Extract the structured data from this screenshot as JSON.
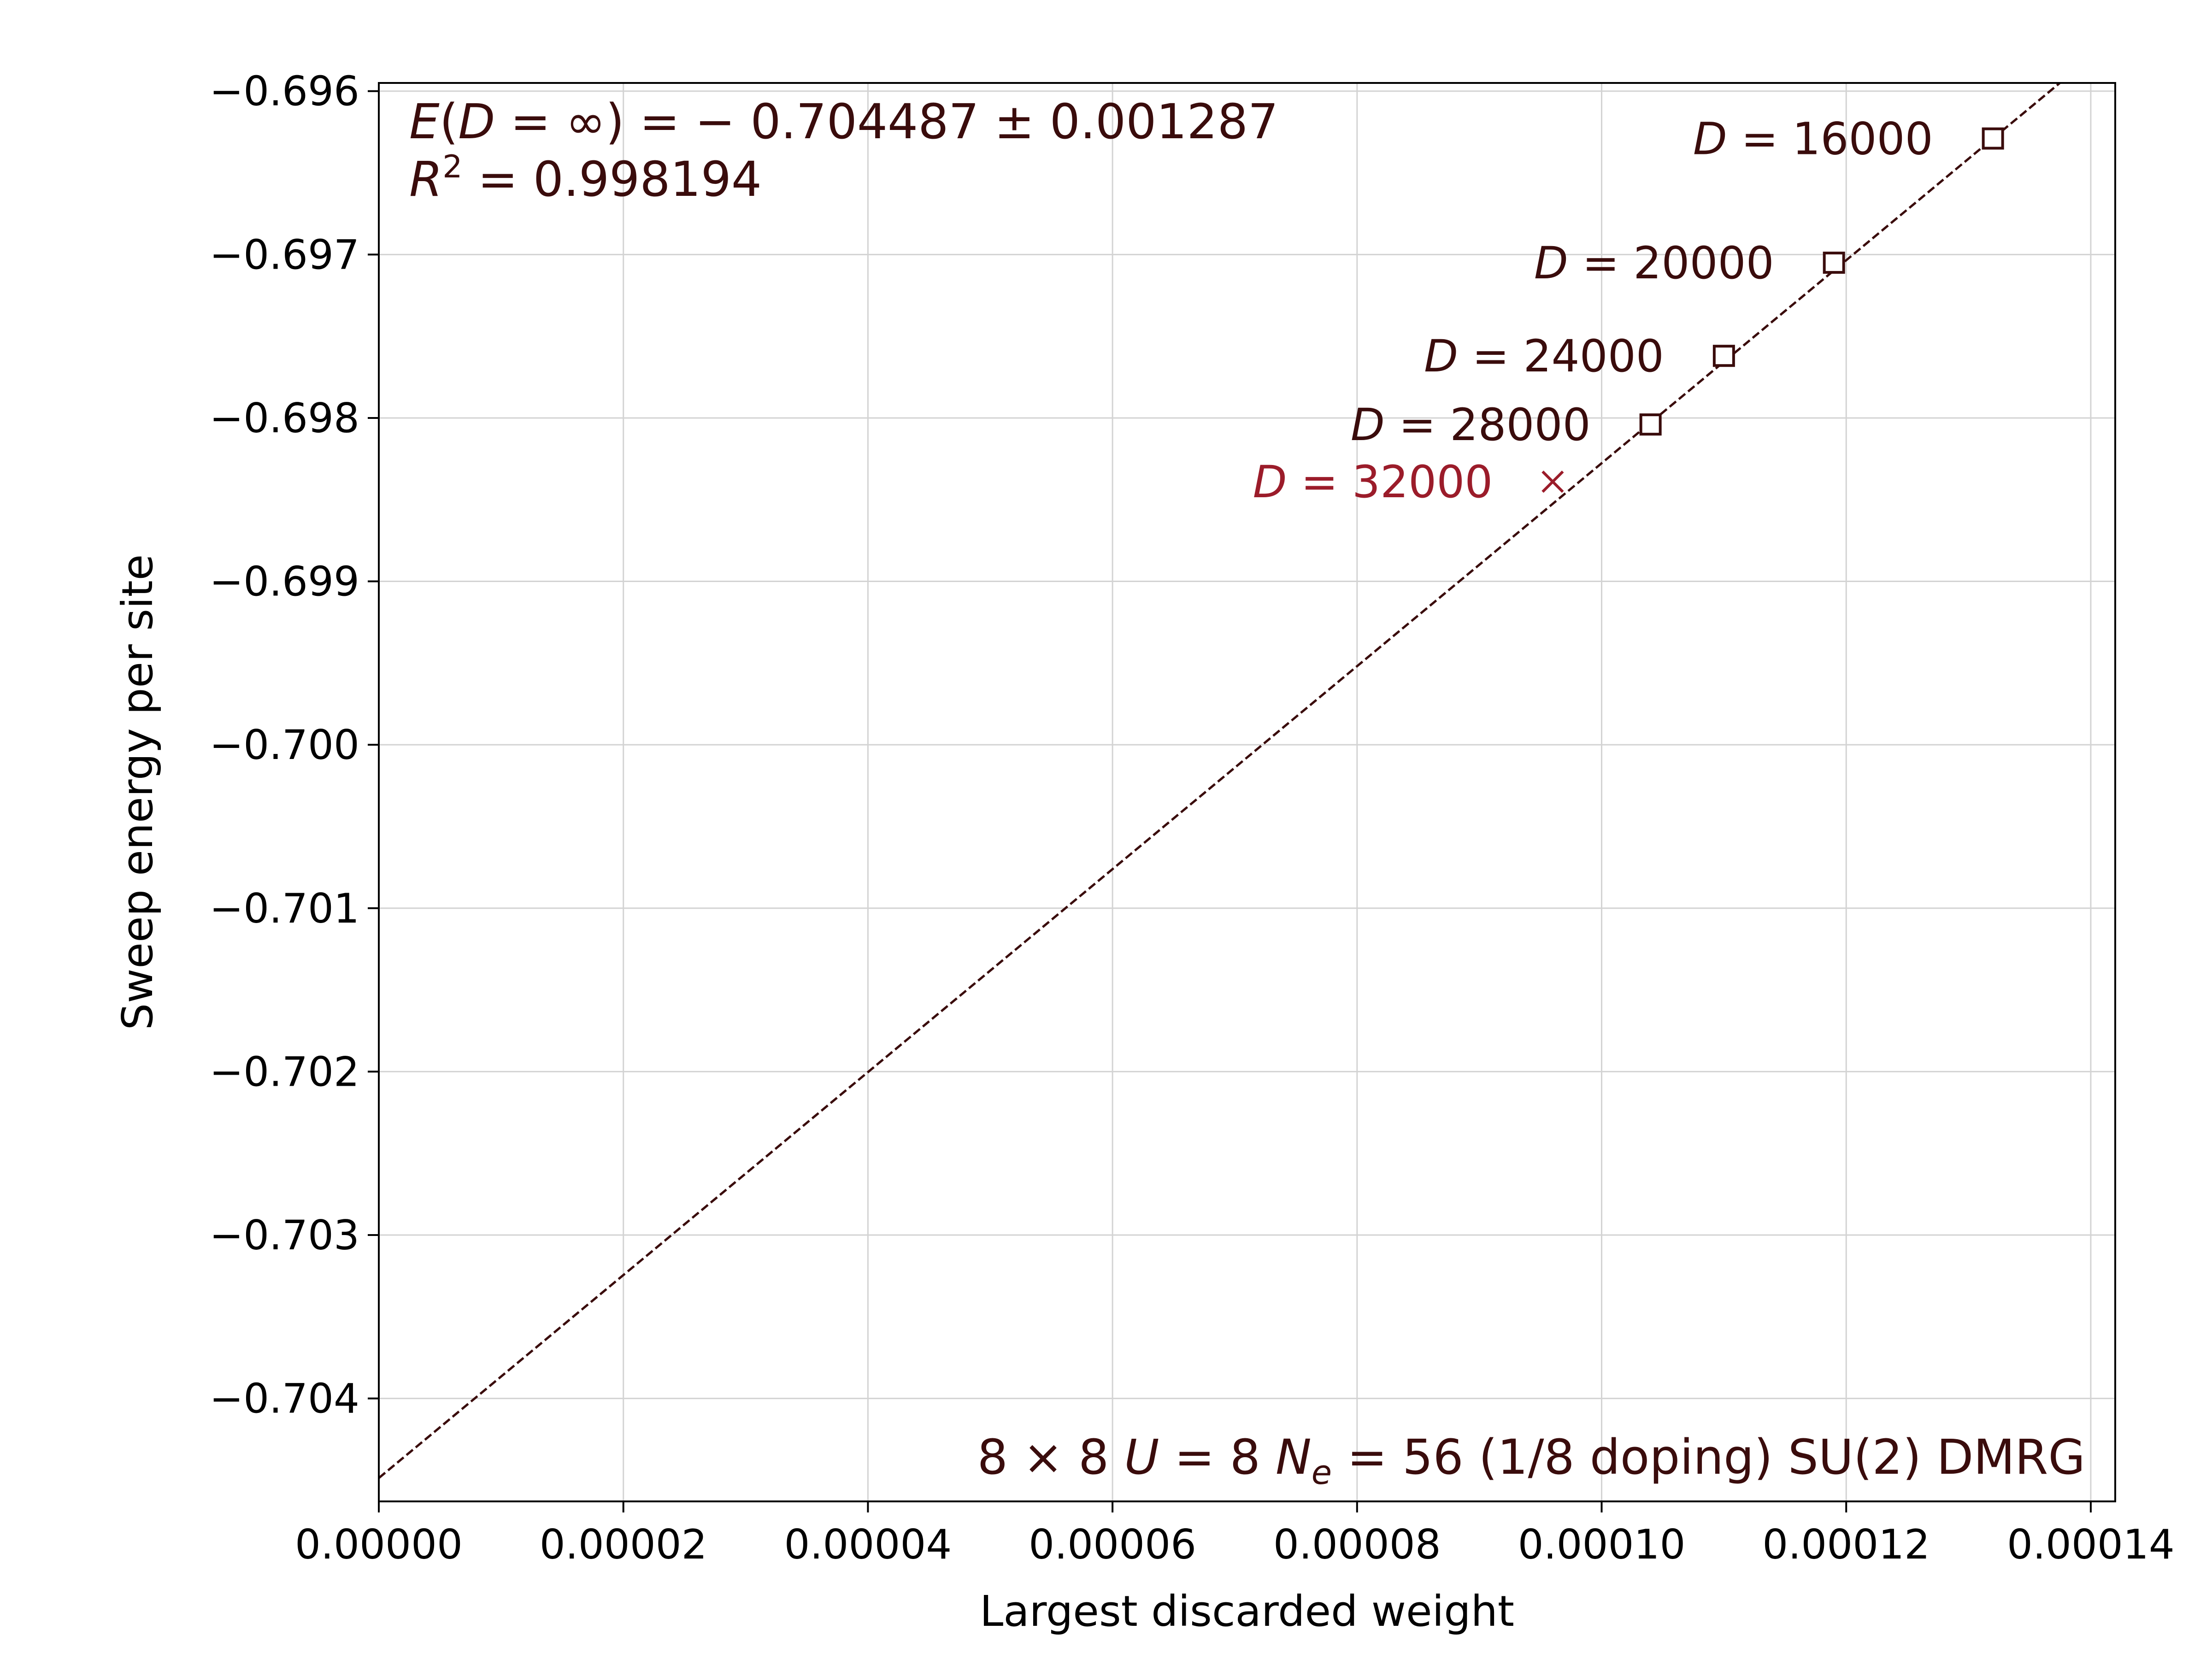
{
  "chart_data": {
    "type": "scatter",
    "xlabel": "Largest discarded weight",
    "ylabel": "Sweep energy per site",
    "xlim": [
      0.0,
      0.000142
    ],
    "ylim": [
      -0.70463,
      -0.69595
    ],
    "x_ticks": [
      "0.00000",
      "0.00002",
      "0.00004",
      "0.00006",
      "0.00008",
      "0.00010",
      "0.00012",
      "0.00014"
    ],
    "x_tick_values": [
      0.0,
      2e-05,
      4e-05,
      6e-05,
      8e-05,
      0.0001,
      0.00012,
      0.00014
    ],
    "y_ticks": [
      "−0.696",
      "−0.697",
      "−0.698",
      "−0.699",
      "−0.700",
      "−0.701",
      "−0.702",
      "−0.703",
      "−0.704"
    ],
    "y_tick_values": [
      -0.696,
      -0.697,
      -0.698,
      -0.699,
      -0.7,
      -0.701,
      -0.702,
      -0.703,
      -0.704
    ],
    "grid": true,
    "colors": {
      "fit": "#3a0c0c",
      "included": "#3a0c0c",
      "excluded": "#9b1c2a",
      "grid": "#d3d3d3"
    },
    "points": [
      {
        "D": "16000",
        "x": 0.000132,
        "y": -0.69629,
        "marker": "square",
        "included": true
      },
      {
        "D": "20000",
        "x": 0.000119,
        "y": -0.69705,
        "marker": "square",
        "included": true
      },
      {
        "D": "24000",
        "x": 0.00011,
        "y": -0.69762,
        "marker": "square",
        "included": true
      },
      {
        "D": "28000",
        "x": 0.000104,
        "y": -0.69804,
        "marker": "square",
        "included": true
      },
      {
        "D": "32000",
        "x": 9.6e-05,
        "y": -0.69839,
        "marker": "x",
        "included": false
      }
    ],
    "fit": {
      "intercept": -0.704487,
      "slope": 62.1,
      "style": "dashed"
    },
    "annotations": {
      "energy_lhs_E": "E",
      "energy_lhs_open": "(",
      "energy_lhs_D": "D",
      "energy_lhs_mid": " = ∞) = − 0.704487 ± 0.001287",
      "r2_R": "R",
      "r2_exp": "2",
      "r2_rest": " = 0.998194",
      "system_pre": "8 × 8 ",
      "system_U": "U",
      "system_mid": " = 8 ",
      "system_N": "N",
      "system_sub": "e",
      "system_post": " = 56 (1/8 doping) SU(2) DMRG",
      "point_label_D": "D",
      "point_label_eq": " = "
    }
  }
}
